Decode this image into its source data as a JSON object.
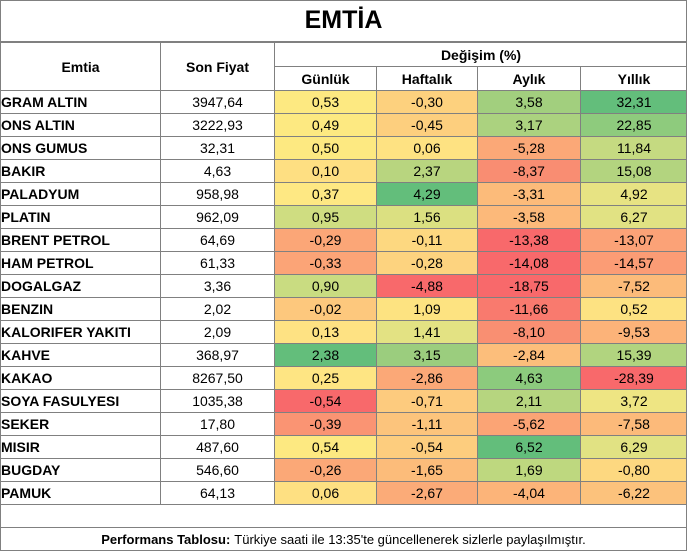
{
  "title": "EMTİA",
  "headers": {
    "emtia": "Emtia",
    "son_fiyat": "Son Fiyat",
    "degisim": "Değişim (%)",
    "gunluk": "Günlük",
    "haftalik": "Haftalık",
    "aylik": "Aylık",
    "yillik": "Yıllık"
  },
  "rows": [
    {
      "name": "GRAM ALTIN",
      "price": "3947,64",
      "d": "0,53",
      "w": "-0,30",
      "m": "3,58",
      "y": "32,31",
      "colors": [
        "#fde981",
        "#fdd17e",
        "#a2cf7e",
        "#63be7b"
      ]
    },
    {
      "name": "ONS ALTIN",
      "price": "3222,93",
      "d": "0,49",
      "w": "-0,45",
      "m": "3,17",
      "y": "22,85",
      "colors": [
        "#fde981",
        "#fdcf7e",
        "#abd27f",
        "#8ecb7d"
      ]
    },
    {
      "name": "ONS GUMUS",
      "price": "32,31",
      "d": "0,50",
      "w": "0,06",
      "m": "-5,28",
      "y": "11,84",
      "colors": [
        "#fde981",
        "#fee282",
        "#fba877",
        "#c5da81"
      ]
    },
    {
      "name": "BAKIR",
      "price": "4,63",
      "d": "0,10",
      "w": "2,37",
      "m": "-8,37",
      "y": "15,08",
      "colors": [
        "#fedf82",
        "#b8d57f",
        "#f98d72",
        "#b3d47f"
      ]
    },
    {
      "name": "PALADYUM",
      "price": "958,98",
      "d": "0,37",
      "w": "4,29",
      "m": "-3,31",
      "y": "4,92",
      "colors": [
        "#fee883",
        "#63be7b",
        "#fcbb7a",
        "#e7e383"
      ]
    },
    {
      "name": "PLATIN",
      "price": "962,09",
      "d": "0,95",
      "w": "1,56",
      "m": "-3,58",
      "y": "6,27",
      "colors": [
        "#cfdd81",
        "#dbe081",
        "#fcb97a",
        "#e1e283"
      ]
    },
    {
      "name": "BRENT PETROL",
      "price": "64,69",
      "d": "-0,29",
      "w": "-0,11",
      "m": "-13,38",
      "y": "-13,07",
      "colors": [
        "#fba677",
        "#fdd880",
        "#f8696b",
        "#fba277"
      ]
    },
    {
      "name": "HAM PETROL",
      "price": "61,33",
      "d": "-0,33",
      "w": "-0,28",
      "m": "-14,08",
      "y": "-14,57",
      "colors": [
        "#fba477",
        "#fdd37f",
        "#f8696b",
        "#fb9c75"
      ]
    },
    {
      "name": "DOGALGAZ",
      "price": "3,36",
      "d": "0,90",
      "w": "-4,88",
      "m": "-18,75",
      "y": "-7,52",
      "colors": [
        "#c9dc81",
        "#f8696b",
        "#f8696b",
        "#fcbb7a"
      ]
    },
    {
      "name": "BENZIN",
      "price": "2,02",
      "d": "-0,02",
      "w": "1,09",
      "m": "-11,66",
      "y": "0,52",
      "colors": [
        "#fdc87d",
        "#fde381",
        "#f97a6e",
        "#fde282"
      ]
    },
    {
      "name": "KALORIFER YAKITI",
      "price": "2,09",
      "d": "0,13",
      "w": "1,41",
      "m": "-8,10",
      "y": "-9,53",
      "colors": [
        "#fee283",
        "#e3e283",
        "#f98f72",
        "#fcb379"
      ]
    },
    {
      "name": "KAHVE",
      "price": "368,97",
      "d": "2,38",
      "w": "3,15",
      "m": "-2,84",
      "y": "15,39",
      "colors": [
        "#63be7b",
        "#9bcd7e",
        "#fcbe7b",
        "#b1d47f"
      ]
    },
    {
      "name": "KAKAO",
      "price": "8267,50",
      "d": "0,25",
      "w": "-2,86",
      "m": "4,63",
      "y": "-28,39",
      "colors": [
        "#fee583",
        "#fba877",
        "#8ccb7d",
        "#f8696b"
      ]
    },
    {
      "name": "SOYA FASULYESI",
      "price": "1035,38",
      "d": "-0,54",
      "w": "-0,71",
      "m": "2,11",
      "y": "3,72",
      "colors": [
        "#f8696b",
        "#fdcb7e",
        "#b6d57f",
        "#eee583"
      ]
    },
    {
      "name": "SEKER",
      "price": "17,80",
      "d": "-0,39",
      "w": "-1,11",
      "m": "-5,62",
      "y": "-7,58",
      "colors": [
        "#fa9473",
        "#fcc47c",
        "#fba475",
        "#fcba7a"
      ]
    },
    {
      "name": "MISIR",
      "price": "487,60",
      "d": "0,54",
      "w": "-0,54",
      "m": "6,52",
      "y": "6,29",
      "colors": [
        "#fde981",
        "#fdcd7e",
        "#63be7b",
        "#e1e283"
      ]
    },
    {
      "name": "BUGDAY",
      "price": "546,60",
      "d": "-0,26",
      "w": "-1,65",
      "m": "1,69",
      "y": "-0,80",
      "colors": [
        "#fba877",
        "#fcbc7a",
        "#bed87f",
        "#fdd880"
      ]
    },
    {
      "name": "PAMUK",
      "price": "64,13",
      "d": "0,06",
      "w": "-2,67",
      "m": "-4,04",
      "y": "-6,22",
      "colors": [
        "#fee082",
        "#fbab78",
        "#fcb479",
        "#fcc27c"
      ]
    }
  ],
  "footer": {
    "label": "Performans Tablosu:",
    "text": "Türkiye saati ile 13:35'te güncellenerek sizlerle paylaşılmıştır."
  }
}
